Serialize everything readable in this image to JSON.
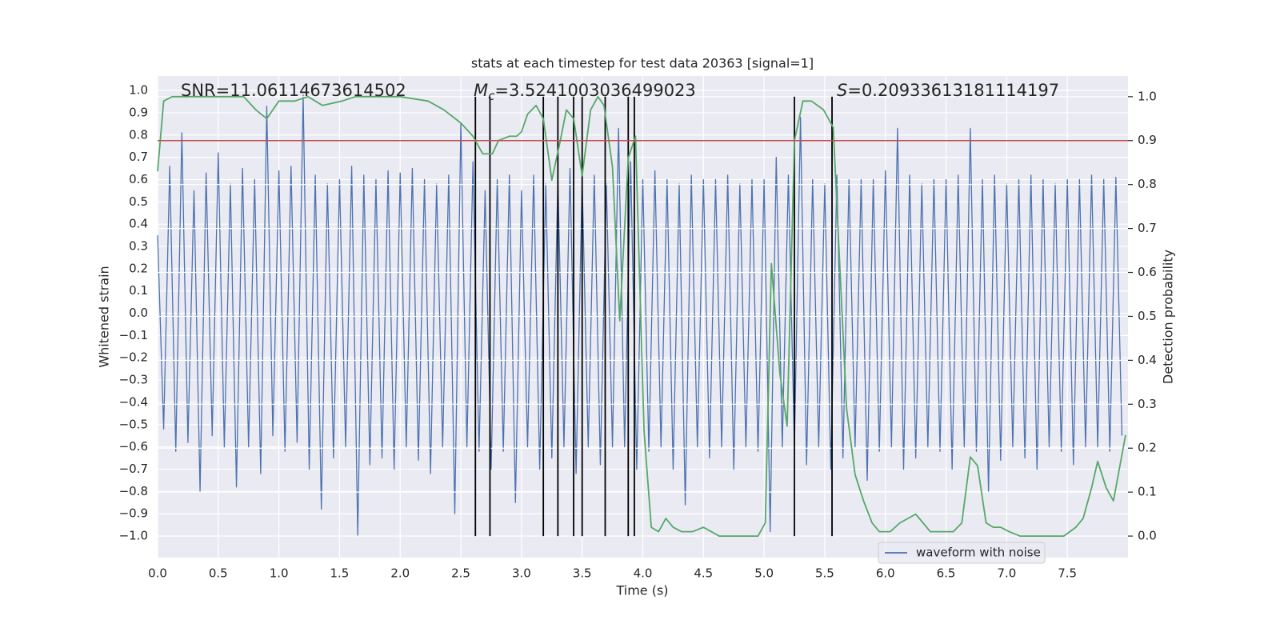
{
  "chart_data": {
    "type": "line",
    "title": "stats at each timestep for test data 20363 [signal=1]",
    "xlabel": "Time (s)",
    "ylabel": "Whitened strain",
    "y2label": "Detection probability",
    "xlim": [
      0,
      8
    ],
    "ylim": [
      -1.097,
      1.065
    ],
    "y2lim": [
      -0.049,
      1.047
    ],
    "grid": true,
    "background": "#eaeaf2",
    "legend": "best",
    "xticks": [
      {
        "value": 0,
        "label": "0.0"
      },
      {
        "value": 0.5,
        "label": "0.5"
      },
      {
        "value": 1,
        "label": "1.0"
      },
      {
        "value": 1.5,
        "label": "1.5"
      },
      {
        "value": 2,
        "label": "2.0"
      },
      {
        "value": 2.5,
        "label": "2.5"
      },
      {
        "value": 3,
        "label": "3.0"
      },
      {
        "value": 3.5,
        "label": "3.5"
      },
      {
        "value": 4,
        "label": "4.0"
      },
      {
        "value": 4.5,
        "label": "4.5"
      },
      {
        "value": 5,
        "label": "5.0"
      },
      {
        "value": 5.5,
        "label": "5.5"
      },
      {
        "value": 6,
        "label": "6.0"
      },
      {
        "value": 6.5,
        "label": "6.5"
      },
      {
        "value": 7,
        "label": "7.0"
      },
      {
        "value": 7.5,
        "label": "7.5"
      }
    ],
    "yticks": [
      {
        "value": -1,
        "label": "−1.0"
      },
      {
        "value": -0.9,
        "label": "−0.9"
      },
      {
        "value": -0.8,
        "label": "−0.8"
      },
      {
        "value": -0.7,
        "label": "−0.7"
      },
      {
        "value": -0.6,
        "label": "−0.6"
      },
      {
        "value": -0.5,
        "label": "−0.5"
      },
      {
        "value": -0.4,
        "label": "−0.4"
      },
      {
        "value": -0.3,
        "label": "−0.3"
      },
      {
        "value": -0.2,
        "label": "−0.2"
      },
      {
        "value": -0.1,
        "label": "−0.1"
      },
      {
        "value": 0,
        "label": "0.0"
      },
      {
        "value": 0.1,
        "label": "0.1"
      },
      {
        "value": 0.2,
        "label": "0.2"
      },
      {
        "value": 0.3,
        "label": "0.3"
      },
      {
        "value": 0.4,
        "label": "0.4"
      },
      {
        "value": 0.5,
        "label": "0.5"
      },
      {
        "value": 0.6,
        "label": "0.6"
      },
      {
        "value": 0.7,
        "label": "0.7"
      },
      {
        "value": 0.8,
        "label": "0.8"
      },
      {
        "value": 0.9,
        "label": "0.9"
      },
      {
        "value": 1,
        "label": "1.0"
      }
    ],
    "y2ticks": [
      {
        "value": 0,
        "label": "0.0"
      },
      {
        "value": 0.1,
        "label": "0.1"
      },
      {
        "value": 0.2,
        "label": "0.2"
      },
      {
        "value": 0.3,
        "label": "0.3"
      },
      {
        "value": 0.4,
        "label": "0.4"
      },
      {
        "value": 0.5,
        "label": "0.5"
      },
      {
        "value": 0.6,
        "label": "0.6"
      },
      {
        "value": 0.7,
        "label": "0.7"
      },
      {
        "value": 0.8,
        "label": "0.8"
      },
      {
        "value": 0.9,
        "label": "0.9"
      },
      {
        "value": 1,
        "label": "1.0"
      }
    ],
    "annotations": {
      "snr": "SNR=11.06114673614502",
      "mc_symbol": "M",
      "mc_subscript": "c",
      "mc_text": "=3.5241003036499023",
      "s_symbol": "S",
      "s_text": "=0.20933613181114197"
    },
    "series": [
      {
        "name": "waveform with noise",
        "color": "#4c72b0",
        "axis": "y",
        "x": [
          0,
          0.05,
          0.1,
          0.15,
          0.2,
          0.25,
          0.3,
          0.35,
          0.4,
          0.45,
          0.5,
          0.55,
          0.6,
          0.65,
          0.7,
          0.75,
          0.8,
          0.85,
          0.9,
          0.95,
          1,
          1.05,
          1.1,
          1.15,
          1.2,
          1.25,
          1.3,
          1.35,
          1.4,
          1.45,
          1.5,
          1.55,
          1.6,
          1.65,
          1.7,
          1.75,
          1.8,
          1.85,
          1.9,
          1.95,
          2,
          2.05,
          2.1,
          2.15,
          2.2,
          2.25,
          2.3,
          2.35,
          2.4,
          2.45,
          2.5,
          2.55,
          2.6,
          2.65,
          2.7,
          2.75,
          2.8,
          2.85,
          2.9,
          2.95,
          3,
          3.05,
          3.1,
          3.15,
          3.2,
          3.25,
          3.3,
          3.35,
          3.4,
          3.45,
          3.5,
          3.55,
          3.6,
          3.65,
          3.7,
          3.75,
          3.8,
          3.85,
          3.9,
          3.95,
          4,
          4.05,
          4.1,
          4.15,
          4.2,
          4.25,
          4.3,
          4.35,
          4.4,
          4.45,
          4.5,
          4.55,
          4.6,
          4.65,
          4.7,
          4.75,
          4.8,
          4.85,
          4.9,
          4.95,
          5,
          5.05,
          5.1,
          5.15,
          5.2,
          5.25,
          5.3,
          5.35,
          5.4,
          5.45,
          5.5,
          5.55,
          5.6,
          5.65,
          5.7,
          5.75,
          5.8,
          5.85,
          5.9,
          5.95,
          6,
          6.05,
          6.1,
          6.15,
          6.2,
          6.25,
          6.3,
          6.35,
          6.4,
          6.45,
          6.5,
          6.55,
          6.6,
          6.65,
          6.7,
          6.75,
          6.8,
          6.85,
          6.9,
          6.95,
          7,
          7.05,
          7.1,
          7.15,
          7.2,
          7.25,
          7.3,
          7.35,
          7.4,
          7.45,
          7.5,
          7.55,
          7.6,
          7.65,
          7.7,
          7.75,
          7.8,
          7.85,
          7.9,
          7.95
        ],
        "values": [
          0.35,
          -0.52,
          0.66,
          -0.62,
          0.81,
          -0.58,
          0.55,
          -0.8,
          0.63,
          -0.55,
          0.72,
          -0.6,
          0.58,
          -0.78,
          0.65,
          -0.6,
          0.6,
          -0.72,
          0.93,
          -0.55,
          0.64,
          -0.62,
          0.66,
          -0.58,
          0.98,
          -0.7,
          0.62,
          -0.88,
          0.58,
          -0.65,
          0.6,
          -0.6,
          0.66,
          -1.0,
          0.62,
          -0.68,
          0.6,
          -0.65,
          0.64,
          -0.7,
          0.63,
          -0.6,
          0.65,
          -0.66,
          0.6,
          -0.72,
          0.58,
          -0.6,
          0.62,
          -0.9,
          0.85,
          -0.6,
          0.68,
          -0.62,
          0.55,
          -0.7,
          0.6,
          -0.62,
          0.62,
          -0.85,
          0.55,
          -0.6,
          0.62,
          -0.7,
          0.58,
          -0.65,
          0.6,
          -0.6,
          0.65,
          -0.72,
          0.6,
          -0.6,
          0.62,
          -0.68,
          0.58,
          -0.6,
          0.83,
          -0.6,
          0.68,
          -0.7,
          0.6,
          -0.62,
          0.64,
          -0.6,
          0.6,
          -0.7,
          0.58,
          -0.86,
          0.62,
          -0.6,
          0.6,
          -0.65,
          0.6,
          -0.6,
          0.62,
          -0.7,
          0.58,
          -0.6,
          0.6,
          -0.62,
          0.6,
          -0.98,
          0.7,
          -0.6,
          0.62,
          -0.6,
          0.88,
          -0.68,
          0.6,
          -0.6,
          0.58,
          -0.7,
          0.62,
          -0.65,
          0.6,
          -0.6,
          0.6,
          -0.75,
          0.6,
          -0.62,
          0.64,
          -0.6,
          0.83,
          -0.7,
          0.62,
          -0.65,
          0.58,
          -0.6,
          0.6,
          -0.62,
          0.6,
          -0.7,
          0.62,
          -0.6,
          0.83,
          -0.62,
          0.6,
          -0.8,
          0.62,
          -0.66,
          0.58,
          -0.6,
          0.6,
          -0.65,
          0.62,
          -0.7,
          0.6,
          -0.6,
          0.58,
          -0.62,
          0.6,
          -0.68,
          0.6,
          -0.6,
          0.62,
          -0.6,
          0.6,
          -0.62,
          0.61,
          -0.55
        ]
      },
      {
        "color": "#55a868",
        "axis": "y2",
        "x": [
          0,
          0.05,
          0.12,
          0.71,
          0.81,
          0.9,
          1,
          1.13,
          1.24,
          1.36,
          1.52,
          1.63,
          2,
          2.23,
          2.36,
          2.5,
          2.6,
          2.68,
          2.76,
          2.81,
          2.9,
          2.96,
          3,
          3.05,
          3.12,
          3.18,
          3.25,
          3.32,
          3.37,
          3.43,
          3.5,
          3.57,
          3.63,
          3.68,
          3.75,
          3.81,
          3.88,
          3.94,
          4.01,
          4.07,
          4.13,
          4.19,
          4.25,
          4.32,
          4.41,
          4.5,
          4.63,
          4.75,
          4.86,
          4.95,
          5.01,
          5.06,
          5.13,
          5.19,
          5.25,
          5.32,
          5.39,
          5.49,
          5.57,
          5.68,
          5.75,
          5.82,
          5.89,
          5.95,
          6.04,
          6.12,
          6.25,
          6.37,
          6.47,
          6.56,
          6.63,
          6.7,
          6.76,
          6.83,
          6.89,
          6.95,
          7.02,
          7.11,
          7.47,
          7.57,
          7.63,
          7.7,
          7.75,
          7.82,
          7.88,
          7.98
        ],
        "values": [
          0.83,
          0.99,
          1.0,
          1.0,
          0.97,
          0.95,
          0.99,
          0.99,
          1.0,
          0.98,
          0.99,
          1.0,
          1.0,
          0.99,
          0.97,
          0.94,
          0.91,
          0.87,
          0.87,
          0.9,
          0.91,
          0.91,
          0.92,
          0.96,
          0.98,
          0.95,
          0.81,
          0.9,
          0.97,
          0.95,
          0.82,
          0.97,
          1.0,
          0.98,
          0.84,
          0.49,
          0.86,
          0.91,
          0.24,
          0.02,
          0.01,
          0.04,
          0.02,
          0.01,
          0.01,
          0.02,
          0.0,
          0.0,
          0.0,
          0.0,
          0.03,
          0.62,
          0.37,
          0.25,
          0.9,
          0.99,
          0.99,
          0.97,
          0.93,
          0.29,
          0.14,
          0.08,
          0.03,
          0.01,
          0.01,
          0.03,
          0.05,
          0.01,
          0.01,
          0.01,
          0.03,
          0.18,
          0.16,
          0.03,
          0.02,
          0.02,
          0.01,
          0.0,
          0.0,
          0.02,
          0.04,
          0.11,
          0.17,
          0.11,
          0.08,
          0.23
        ]
      }
    ],
    "hline": {
      "y": 0.9,
      "axis": "y2",
      "color": "#c44e52"
    },
    "vlines": {
      "x": [
        2.62,
        2.74,
        3.18,
        3.3,
        3.43,
        3.5,
        3.69,
        3.88,
        3.93,
        5.25,
        5.56
      ],
      "ymin": 0,
      "ymax": 1.0,
      "axis": "y2",
      "color": "#000000"
    }
  }
}
